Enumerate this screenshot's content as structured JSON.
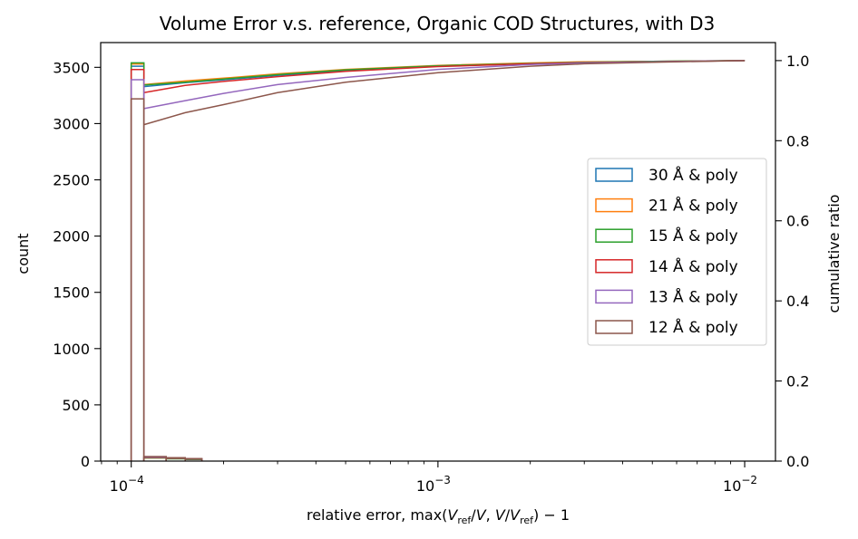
{
  "chart_data": {
    "type": "histogram",
    "title": "Volume Error v.s. reference, Organic COD Structures, with D3",
    "xlabel": {
      "prefix": "relative error, max(",
      "v1": "V",
      "sub1": "ref",
      "mid1": "/",
      "v2": "V",
      "mid2": ", ",
      "v3": "V",
      "mid3": "/",
      "v4": "V",
      "sub2": "ref",
      "suffix": ") − 1"
    },
    "ylabel_left": "count",
    "ylabel_right": "cumulative ratio",
    "x_scale": "log",
    "xlim": [
      7.95e-05,
      0.0126
    ],
    "ylim_left": [
      0,
      3720
    ],
    "ylim_right": [
      0,
      1.045
    ],
    "xticks": [
      {
        "value": 0.0001,
        "mant": "10",
        "exp": "−4"
      },
      {
        "value": 0.001,
        "mant": "10",
        "exp": "−3"
      },
      {
        "value": 0.01,
        "mant": "10",
        "exp": "−2"
      }
    ],
    "yticks_left": [
      "0",
      "500",
      "1000",
      "1500",
      "2000",
      "2500",
      "3000",
      "3500"
    ],
    "yticks_left_values": [
      0,
      500,
      1000,
      1500,
      2000,
      2500,
      3000,
      3500
    ],
    "yticks_right": [
      "0.0",
      "0.2",
      "0.4",
      "0.6",
      "0.8",
      "1.0"
    ],
    "yticks_right_values": [
      0,
      0.2,
      0.4,
      0.6,
      0.8,
      1.0
    ],
    "legend_position": "center-right",
    "bin_edges": [
      0.0001,
      0.00011
    ],
    "series": [
      {
        "name": "30 Å & poly",
        "color": "#1f77b4",
        "first_bin_count": 3510,
        "tail_counts": [
          30,
          25,
          18
        ],
        "cumulative": {
          "x": [
            0.00011,
            0.00015,
            0.0002,
            0.0003,
            0.0005,
            0.001,
            0.002,
            0.003,
            0.005,
            0.01
          ],
          "y": [
            0.935,
            0.945,
            0.952,
            0.963,
            0.975,
            0.987,
            0.993,
            0.996,
            0.998,
            1.0
          ]
        }
      },
      {
        "name": "21 Å & poly",
        "color": "#ff7f0e",
        "first_bin_count": 3530,
        "tail_counts": [
          28,
          22,
          15
        ],
        "cumulative": {
          "x": [
            0.00011,
            0.00015,
            0.0002,
            0.0003,
            0.0005,
            0.001,
            0.002,
            0.003,
            0.005,
            0.01
          ],
          "y": [
            0.94,
            0.949,
            0.956,
            0.967,
            0.978,
            0.988,
            0.994,
            0.997,
            0.998,
            1.0
          ]
        }
      },
      {
        "name": "15 Å & poly",
        "color": "#2ca02c",
        "first_bin_count": 3540,
        "tail_counts": [
          28,
          20,
          14
        ],
        "cumulative": {
          "x": [
            0.00011,
            0.00015,
            0.0002,
            0.0003,
            0.0005,
            0.001,
            0.002,
            0.003,
            0.005,
            0.01
          ],
          "y": [
            0.939,
            0.946,
            0.954,
            0.965,
            0.977,
            0.987,
            0.993,
            0.996,
            0.998,
            1.0
          ]
        }
      },
      {
        "name": "14 Å & poly",
        "color": "#d62728",
        "first_bin_count": 3480,
        "tail_counts": [
          32,
          25,
          18
        ],
        "cumulative": {
          "x": [
            0.00011,
            0.00015,
            0.0002,
            0.0003,
            0.0005,
            0.001,
            0.002,
            0.003,
            0.005,
            0.01
          ],
          "y": [
            0.92,
            0.938,
            0.948,
            0.96,
            0.973,
            0.985,
            0.992,
            0.995,
            0.997,
            1.0
          ]
        }
      },
      {
        "name": "13 Å & poly",
        "color": "#9467bd",
        "first_bin_count": 3390,
        "tail_counts": [
          35,
          28,
          20
        ],
        "cumulative": {
          "x": [
            0.00011,
            0.00015,
            0.0002,
            0.0003,
            0.0005,
            0.001,
            0.002,
            0.003,
            0.005,
            0.01
          ],
          "y": [
            0.88,
            0.9,
            0.918,
            0.94,
            0.958,
            0.978,
            0.99,
            0.994,
            0.997,
            1.0
          ]
        }
      },
      {
        "name": "12 Å & poly",
        "color": "#8c564b",
        "first_bin_count": 3220,
        "tail_counts": [
          40,
          30,
          22
        ],
        "cumulative": {
          "x": [
            0.00011,
            0.00015,
            0.0002,
            0.0003,
            0.0005,
            0.001,
            0.002,
            0.003,
            0.005,
            0.01
          ],
          "y": [
            0.84,
            0.87,
            0.89,
            0.92,
            0.946,
            0.97,
            0.986,
            0.992,
            0.996,
            1.0
          ]
        }
      }
    ]
  }
}
